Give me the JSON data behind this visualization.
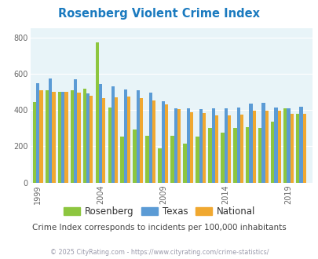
{
  "title": "Rosenberg Violent Crime Index",
  "subtitle": "Crime Index corresponds to incidents per 100,000 inhabitants",
  "copyright": "© 2025 CityRating.com - https://www.cityrating.com/crime-statistics/",
  "years": [
    1999,
    2000,
    2001,
    2002,
    2003,
    2004,
    2005,
    2006,
    2007,
    2008,
    2009,
    2010,
    2011,
    2012,
    2013,
    2014,
    2015,
    2016,
    2017,
    2018,
    2019,
    2020
  ],
  "rosenberg": [
    445,
    510,
    500,
    510,
    520,
    775,
    415,
    255,
    295,
    260,
    190,
    260,
    215,
    255,
    300,
    275,
    300,
    305,
    300,
    335,
    410,
    380
  ],
  "texas": [
    550,
    575,
    500,
    570,
    490,
    545,
    530,
    515,
    510,
    495,
    450,
    410,
    410,
    405,
    410,
    410,
    415,
    435,
    440,
    415,
    410,
    420
  ],
  "national": [
    510,
    500,
    500,
    495,
    480,
    465,
    470,
    475,
    465,
    455,
    430,
    405,
    390,
    385,
    370,
    370,
    375,
    395,
    395,
    395,
    380,
    380
  ],
  "bar_colors": {
    "rosenberg": "#8dc63f",
    "texas": "#5b9bd5",
    "national": "#f0a830"
  },
  "ylim": [
    0,
    850
  ],
  "yticks": [
    0,
    200,
    400,
    600,
    800
  ],
  "xtick_labels": [
    "1999",
    "2004",
    "2009",
    "2014",
    "2019"
  ],
  "xtick_positions": [
    1999,
    2004,
    2009,
    2014,
    2019
  ],
  "bg_color": "#e8f4f8",
  "title_color": "#1a7abf",
  "subtitle_color": "#444444",
  "copyright_color": "#9999aa",
  "bar_width": 0.27,
  "xlim_left": 1998.4,
  "xlim_right": 2020.9
}
